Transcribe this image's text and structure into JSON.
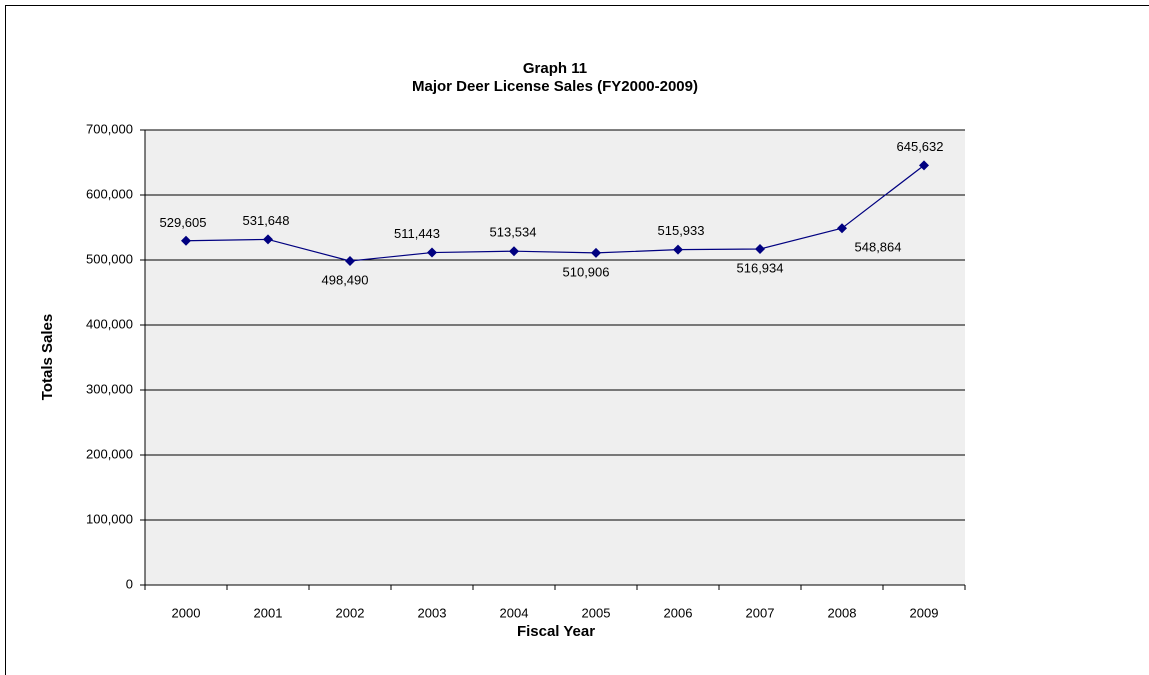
{
  "chart_data": {
    "type": "line",
    "title": "Graph 11",
    "subtitle": "Major Deer License Sales (FY2000-2009)",
    "x_label": "Fiscal Year",
    "y_label": "Totals Sales",
    "categories": [
      "2000",
      "2001",
      "2002",
      "2003",
      "2004",
      "2005",
      "2006",
      "2007",
      "2008",
      "2009"
    ],
    "series": [
      {
        "name": "Major Deer License Sales",
        "color": "#000080",
        "values": [
          529605,
          531648,
          498490,
          511443,
          513534,
          510906,
          515933,
          516934,
          548864,
          645632
        ],
        "value_labels": [
          "529,605",
          "531,648",
          "498,490",
          "511,443",
          "513,534",
          "510,906",
          "515,933",
          "516,934",
          "548,864",
          "645,632"
        ]
      }
    ],
    "ylim": [
      0,
      700000
    ],
    "yticks": [
      0,
      {
        "value": 100000,
        "label": "100,000"
      },
      {
        "value": 200000,
        "label": "200,000"
      },
      {
        "value": 300000,
        "label": "300,000"
      },
      {
        "value": 400000,
        "label": "400,000"
      },
      {
        "value": 500000,
        "label": "500,000"
      },
      {
        "value": 600000,
        "label": "600,000"
      },
      {
        "value": 700000,
        "label": "700,000"
      }
    ],
    "grid": true
  }
}
